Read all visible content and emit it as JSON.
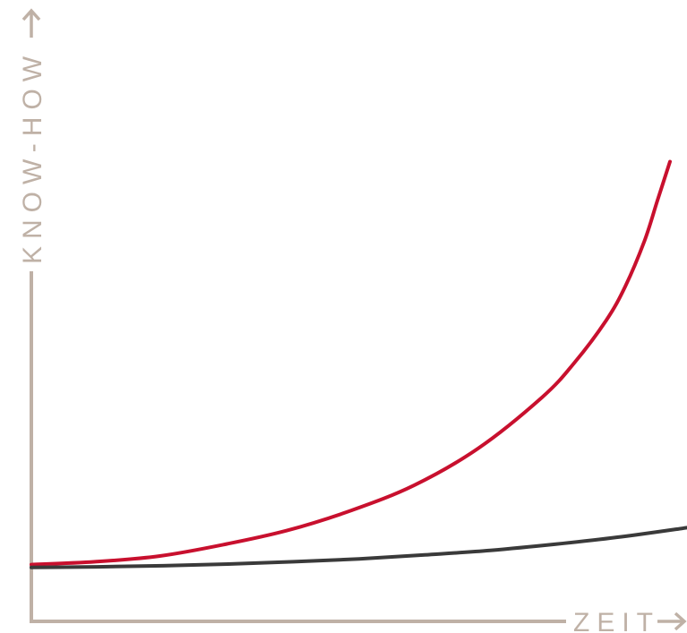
{
  "chart_data": {
    "type": "line",
    "title": "",
    "xlabel": "ZEIT",
    "ylabel": "KNOW-HOW",
    "grid": false,
    "legend": "none",
    "axis_arrows": true,
    "xlim": [
      0,
      1
    ],
    "ylim": [
      0,
      1
    ],
    "series": [
      {
        "color": "#c8102e",
        "x": [
          0,
          0.1,
          0.2,
          0.3,
          0.4,
          0.5,
          0.6,
          0.7,
          0.8,
          0.85,
          0.9,
          0.93,
          0.96,
          0.98,
          1.0
        ],
        "y": [
          0.1,
          0.105,
          0.115,
          0.135,
          0.16,
          0.195,
          0.24,
          0.305,
          0.395,
          0.455,
          0.53,
          0.59,
          0.67,
          0.74,
          0.81
        ]
      },
      {
        "color": "#3a3a3a",
        "x": [
          0,
          0.1,
          0.2,
          0.3,
          0.4,
          0.5,
          0.6,
          0.7,
          0.8,
          0.9,
          1.0
        ],
        "y": [
          0.095,
          0.096,
          0.098,
          0.101,
          0.105,
          0.11,
          0.117,
          0.125,
          0.136,
          0.149,
          0.165
        ]
      }
    ]
  },
  "colors": {
    "axis": "#bfb1a6",
    "background": "#ffffff"
  }
}
